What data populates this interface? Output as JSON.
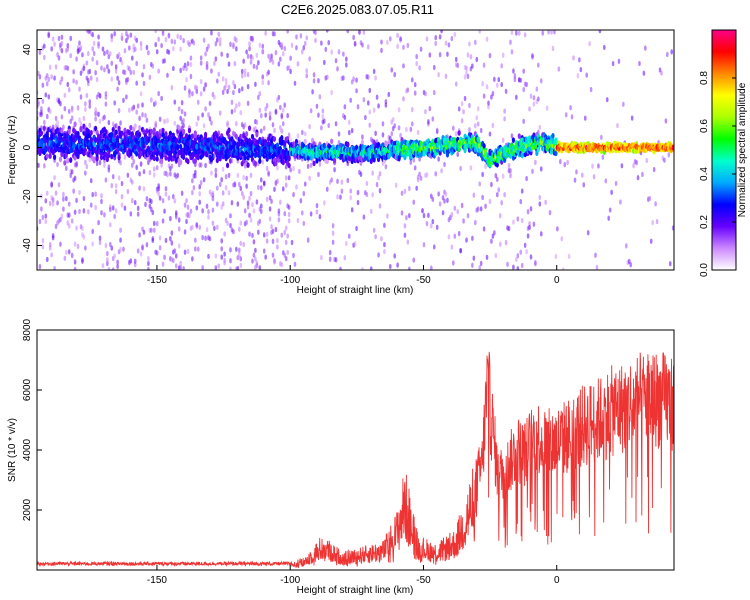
{
  "title": "C2E6.2025.083.07.05.R11",
  "chart_data": [
    {
      "type": "heatmap",
      "xlabel": "Height of straight line (km)",
      "ylabel": "Frequency (Hz)",
      "xlim": [
        -195,
        44
      ],
      "ylim": [
        -50,
        48
      ],
      "x_ticks": [
        -150,
        -100,
        -50,
        0
      ],
      "y_ticks": [
        -40,
        -20,
        0,
        20,
        40
      ],
      "colorbar": {
        "label": "Normalized spectral amplitude",
        "range": [
          0,
          1
        ],
        "ticks": [
          0.0,
          0.2,
          0.4,
          0.6,
          0.8
        ],
        "colormap": [
          "#ffffff",
          "#cc88ff",
          "#6600ff",
          "#0000ff",
          "#00aaff",
          "#00ffcc",
          "#00ff00",
          "#aaff00",
          "#ffff00",
          "#ff8800",
          "#ff0000",
          "#ff0088"
        ]
      },
      "ridge": [
        {
          "x": -195,
          "y": 2
        },
        {
          "x": -150,
          "y": 1
        },
        {
          "x": -100,
          "y": -1
        },
        {
          "x": -90,
          "y": -2
        },
        {
          "x": -70,
          "y": -2
        },
        {
          "x": -50,
          "y": 0
        },
        {
          "x": -30,
          "y": 2
        },
        {
          "x": -25,
          "y": -5
        },
        {
          "x": -15,
          "y": 0
        },
        {
          "x": -5,
          "y": 2
        },
        {
          "x": 0,
          "y": 0
        },
        {
          "x": 44,
          "y": 0
        }
      ]
    },
    {
      "type": "line",
      "xlabel": "Height of straight line (km)",
      "ylabel": "SNR (10 * v/v)",
      "xlim": [
        -195,
        44
      ],
      "ylim": [
        0,
        8000
      ],
      "x_ticks": [
        -150,
        -100,
        -50,
        0
      ],
      "y_ticks": [
        2000,
        4000,
        6000,
        8000
      ],
      "color": "#ee3333",
      "envelope": [
        {
          "x": -195,
          "y": 200
        },
        {
          "x": -150,
          "y": 200
        },
        {
          "x": -120,
          "y": 200
        },
        {
          "x": -105,
          "y": 300
        },
        {
          "x": -95,
          "y": 400
        },
        {
          "x": -88,
          "y": 1200
        },
        {
          "x": -80,
          "y": 600
        },
        {
          "x": -65,
          "y": 1000
        },
        {
          "x": -60,
          "y": 2000
        },
        {
          "x": -57,
          "y": 3500
        },
        {
          "x": -52,
          "y": 1200
        },
        {
          "x": -45,
          "y": 900
        },
        {
          "x": -38,
          "y": 1400
        },
        {
          "x": -33,
          "y": 3000
        },
        {
          "x": -28,
          "y": 4500
        },
        {
          "x": -26,
          "y": 8000
        },
        {
          "x": -22,
          "y": 4000
        },
        {
          "x": -18,
          "y": 4500
        },
        {
          "x": -15,
          "y": 5200
        },
        {
          "x": -12,
          "y": 5000
        },
        {
          "x": -8,
          "y": 5800
        },
        {
          "x": -3,
          "y": 5400
        },
        {
          "x": 0,
          "y": 5500
        },
        {
          "x": 5,
          "y": 5800
        },
        {
          "x": 10,
          "y": 6200
        },
        {
          "x": 15,
          "y": 6400
        },
        {
          "x": 20,
          "y": 6800
        },
        {
          "x": 25,
          "y": 7000
        },
        {
          "x": 30,
          "y": 7200
        },
        {
          "x": 35,
          "y": 7400
        },
        {
          "x": 40,
          "y": 7300
        },
        {
          "x": 44,
          "y": 7200
        }
      ]
    }
  ]
}
